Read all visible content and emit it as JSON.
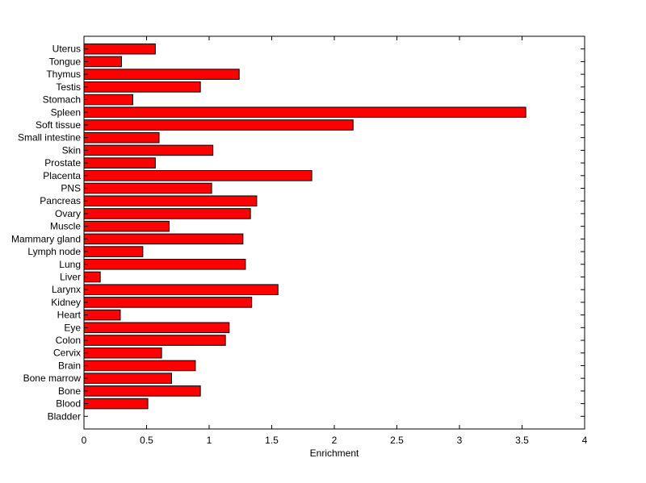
{
  "chart_data": {
    "type": "bar",
    "orientation": "horizontal",
    "categories": [
      "Uterus",
      "Tongue",
      "Thymus",
      "Testis",
      "Stomach",
      "Spleen",
      "Soft tissue",
      "Small intestine",
      "Skin",
      "Prostate",
      "Placenta",
      "PNS",
      "Pancreas",
      "Ovary",
      "Muscle",
      "Mammary gland",
      "Lymph node",
      "Lung",
      "Liver",
      "Larynx",
      "Kidney",
      "Heart",
      "Eye",
      "Colon",
      "Cervix",
      "Brain",
      "Bone marrow",
      "Bone",
      "Blood",
      "Bladder"
    ],
    "values": [
      0.57,
      0.3,
      1.24,
      0.93,
      0.39,
      3.53,
      2.15,
      0.6,
      1.03,
      0.57,
      1.82,
      1.02,
      1.38,
      1.33,
      0.68,
      1.27,
      0.47,
      1.29,
      0.13,
      1.55,
      1.34,
      0.29,
      1.16,
      1.13,
      0.62,
      0.89,
      0.7,
      0.93,
      0.51,
      0.0
    ],
    "xlabel": "Enrichment",
    "xlim": [
      0,
      4
    ],
    "xticks": [
      "0",
      "0.5",
      "1",
      "1.5",
      "2",
      "2.5",
      "3",
      "3.5",
      "4"
    ],
    "bar_color": "#ff0000",
    "grid": false
  }
}
